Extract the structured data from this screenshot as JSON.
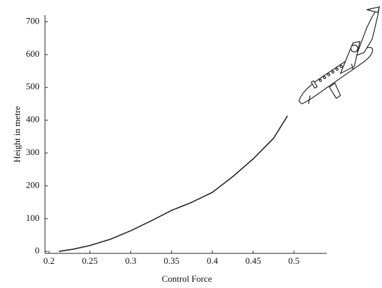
{
  "chart_data": {
    "type": "line",
    "x_label": "Control Force",
    "y_label": "Height in metre",
    "xlim": [
      0.195,
      0.54
    ],
    "ylim": [
      -6,
      720
    ],
    "xticks": [
      0.2,
      0.25,
      0.3,
      0.35,
      0.4,
      0.45,
      0.5
    ],
    "yticks": [
      0,
      100,
      200,
      300,
      400,
      500,
      600,
      700
    ],
    "x": [
      0.212,
      0.23,
      0.25,
      0.275,
      0.3,
      0.325,
      0.35,
      0.375,
      0.4,
      0.425,
      0.45,
      0.475,
      0.492
    ],
    "series": [
      {
        "color": "#222222",
        "values": [
          0,
          7,
          18,
          37,
          63,
          93,
          125,
          150,
          180,
          228,
          282,
          345,
          413
        ]
      }
    ],
    "grid": false
  }
}
